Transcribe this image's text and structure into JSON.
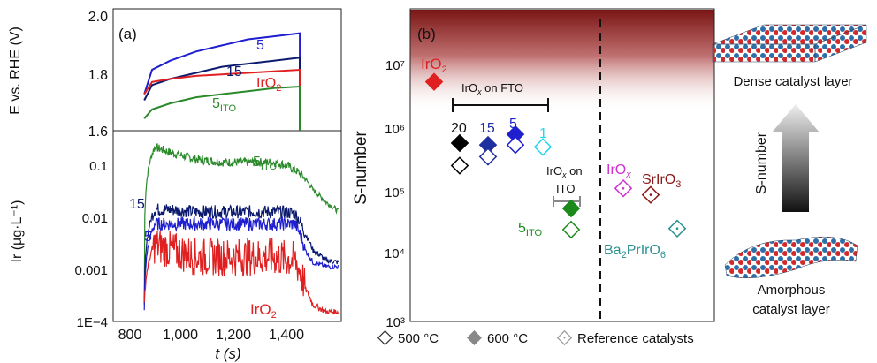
{
  "panel_a": {
    "label": "(a)",
    "top_ylabel": "E vs. RHE (V)",
    "bottom_ylabel": "Ir (µg·L⁻¹)",
    "xlabel": "t (s)",
    "x_ticks": [
      "800",
      "1,000",
      "1,200",
      "1,400"
    ],
    "top_y_ticks": [
      "1.6",
      "1.8",
      "2.0"
    ],
    "bottom_y_ticks": [
      "1E−4",
      "0.001",
      "0.01",
      "0.1"
    ],
    "top_series_labels": [
      "5",
      "15",
      "IrO2",
      "5ITO"
    ],
    "bottom_series_labels": [
      "5ITO",
      "15",
      "5",
      "IrO2"
    ]
  },
  "panel_b": {
    "label": "(b)",
    "ylabel": "S-number",
    "y_ticks": [
      "10³",
      "10⁴",
      "10⁵",
      "10⁶",
      "10⁷"
    ],
    "group_label_fto": "IrOx on FTO",
    "group_label_ito_1": "IrOx on",
    "group_label_ito_2": "ITO",
    "point_labels": {
      "iro2": "IrO2",
      "p20": "20",
      "p15": "15",
      "p5": "5",
      "p1": "1",
      "ito": "5ITO",
      "irox": "IrOx",
      "srirO3": "SrIrO3",
      "baprIrO6": "Ba2PrIrO6"
    },
    "legend": [
      "500 °C",
      "600 °C",
      "Reference catalysts"
    ]
  },
  "schematic": {
    "top_caption": "Dense catalyst layer",
    "arrow_label": "S-number",
    "bottom_caption_1": "Amorphous",
    "bottom_caption_2": "catalyst layer"
  },
  "chart_data": [
    {
      "type": "line",
      "panel": "a-top",
      "xlabel": "t (s)",
      "ylabel": "E vs. RHE (V)",
      "xlim": [
        680,
        1560
      ],
      "ylim": [
        1.6,
        2.0
      ],
      "series": [
        {
          "name": "5",
          "color": "#1f1fd0",
          "x": [
            800,
            830,
            900,
            1000,
            1100,
            1200,
            1300,
            1400
          ],
          "y": [
            1.72,
            1.8,
            1.83,
            1.86,
            1.88,
            1.9,
            1.91,
            1.92
          ]
        },
        {
          "name": "15",
          "color": "#0b1a6e",
          "x": [
            800,
            830,
            900,
            1000,
            1100,
            1200,
            1300,
            1400
          ],
          "y": [
            1.7,
            1.75,
            1.77,
            1.79,
            1.81,
            1.82,
            1.83,
            1.84
          ]
        },
        {
          "name": "IrO2",
          "color": "#e02020",
          "x": [
            800,
            830,
            900,
            1000,
            1100,
            1200,
            1300,
            1400
          ],
          "y": [
            1.72,
            1.76,
            1.77,
            1.78,
            1.785,
            1.79,
            1.795,
            1.8
          ]
        },
        {
          "name": "5ITO",
          "color": "#2a8a2a",
          "x": [
            800,
            830,
            900,
            1000,
            1100,
            1200,
            1300,
            1400
          ],
          "y": [
            1.64,
            1.67,
            1.69,
            1.71,
            1.72,
            1.73,
            1.74,
            1.745
          ]
        }
      ]
    },
    {
      "type": "line",
      "panel": "a-bottom",
      "xlabel": "t (s)",
      "ylabel": "Ir (µg·L⁻¹)",
      "yscale": "log",
      "xlim": [
        680,
        1560
      ],
      "ylim": [
        0.0001,
        0.3
      ],
      "series": [
        {
          "name": "5ITO",
          "color": "#2a8a2a",
          "x": [
            700,
            800,
            840,
            900,
            1000,
            1100,
            1200,
            1300,
            1350,
            1400,
            1450,
            1500,
            1550
          ],
          "y": [
            0.00015,
            0.0002,
            0.15,
            0.12,
            0.09,
            0.08,
            0.08,
            0.08,
            0.07,
            0.05,
            0.025,
            0.015,
            0.01
          ]
        },
        {
          "name": "15",
          "color": "#0b1a6e",
          "x": [
            700,
            800,
            840,
            900,
            1000,
            1100,
            1200,
            1300,
            1380,
            1420,
            1450,
            1500,
            1550
          ],
          "y": [
            0.0001,
            0.0002,
            0.011,
            0.011,
            0.01,
            0.01,
            0.01,
            0.01,
            0.0095,
            0.004,
            0.002,
            0.0013,
            0.0012
          ]
        },
        {
          "name": "5",
          "color": "#1f1fd0",
          "x": [
            700,
            800,
            840,
            900,
            1000,
            1100,
            1200,
            1300,
            1380,
            1420,
            1450,
            1500,
            1550
          ],
          "y": [
            0.0001,
            0.00015,
            0.006,
            0.006,
            0.006,
            0.006,
            0.006,
            0.006,
            0.006,
            0.002,
            0.0012,
            0.001,
            0.001
          ]
        },
        {
          "name": "IrO2",
          "color": "#e02020",
          "x": [
            700,
            800,
            840,
            900,
            1000,
            1100,
            1200,
            1300,
            1380,
            1420,
            1450,
            1500,
            1550
          ],
          "y": [
            0.0001,
            0.0002,
            0.0025,
            0.002,
            0.0015,
            0.0015,
            0.0015,
            0.0015,
            0.0013,
            0.0004,
            0.0002,
            0.00015,
            0.00015
          ]
        }
      ]
    },
    {
      "type": "scatter",
      "panel": "b",
      "ylabel": "S-number",
      "yscale": "log",
      "ylim": [
        1000,
        50000000
      ],
      "series": [
        {
          "name": "IrO2",
          "color": "#e02020",
          "filled": true,
          "values": [
            4000000
          ]
        },
        {
          "name": "20",
          "color": "#000000",
          "filled_600": 480000,
          "open_500": 220000
        },
        {
          "name": "15",
          "color": "#1f2fa0",
          "filled_600": 450000,
          "open_500": 300000
        },
        {
          "name": "5",
          "color": "#1f1fd0",
          "filled_600": 650000,
          "open_500": 450000
        },
        {
          "name": "1",
          "color": "#22d8f0",
          "open_500": 420000
        },
        {
          "name": "5ITO",
          "color": "#1a8a1a",
          "filled_600": 50000,
          "open_500": 24000
        },
        {
          "name": "IrOx",
          "color": "#d030d0",
          "open": 100000
        },
        {
          "name": "SrIrO3",
          "color": "#8a1a1a",
          "open": 80000
        },
        {
          "name": "Ba2PrIrO6",
          "color": "#2a9090",
          "open": 25000
        }
      ]
    }
  ],
  "colors": {
    "c5": "#1f1fd0",
    "c15": "#0b1a6e",
    "iro2": "#e02020",
    "ito": "#2a8a2a",
    "gradient_top": "#8a1c1c"
  }
}
